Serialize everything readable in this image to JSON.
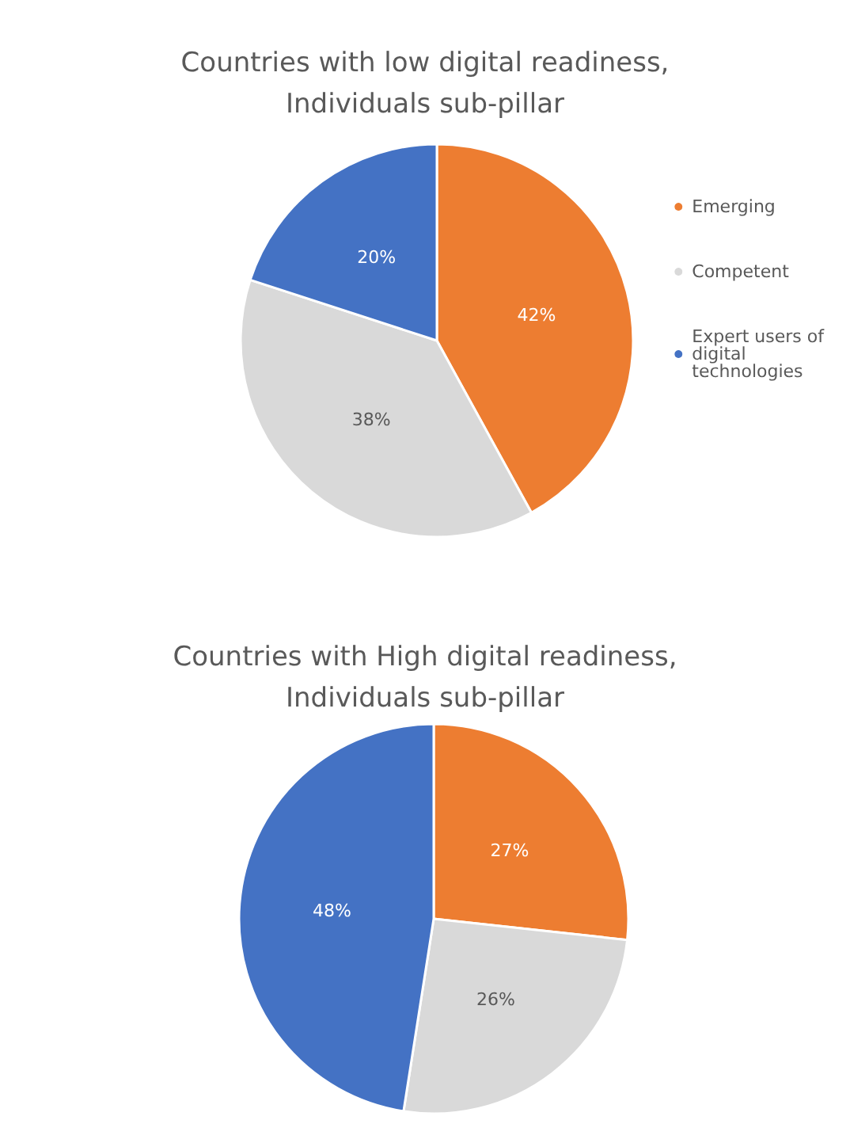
{
  "chart_data": [
    {
      "type": "pie",
      "title": "Countries with low digital readiness,\nIndividuals sub-pillar",
      "categories": [
        "Emerging",
        "Competent",
        "Expert users of digital technologies"
      ],
      "values": [
        42,
        38,
        20
      ],
      "value_labels": [
        "42%",
        "38%",
        "20%"
      ],
      "colors": [
        "#ed7d31",
        "#d9d9d9",
        "#4472c4"
      ],
      "legend": "right"
    },
    {
      "type": "pie",
      "title": "Countries with High digital readiness,\nIndividuals sub-pillar",
      "categories": [
        null,
        null,
        null
      ],
      "values": [
        27,
        26,
        48
      ],
      "value_labels": [
        "27%",
        "26%",
        "48%"
      ],
      "colors": [
        "#ed7d31",
        "#d9d9d9",
        "#4472c4"
      ]
    }
  ]
}
